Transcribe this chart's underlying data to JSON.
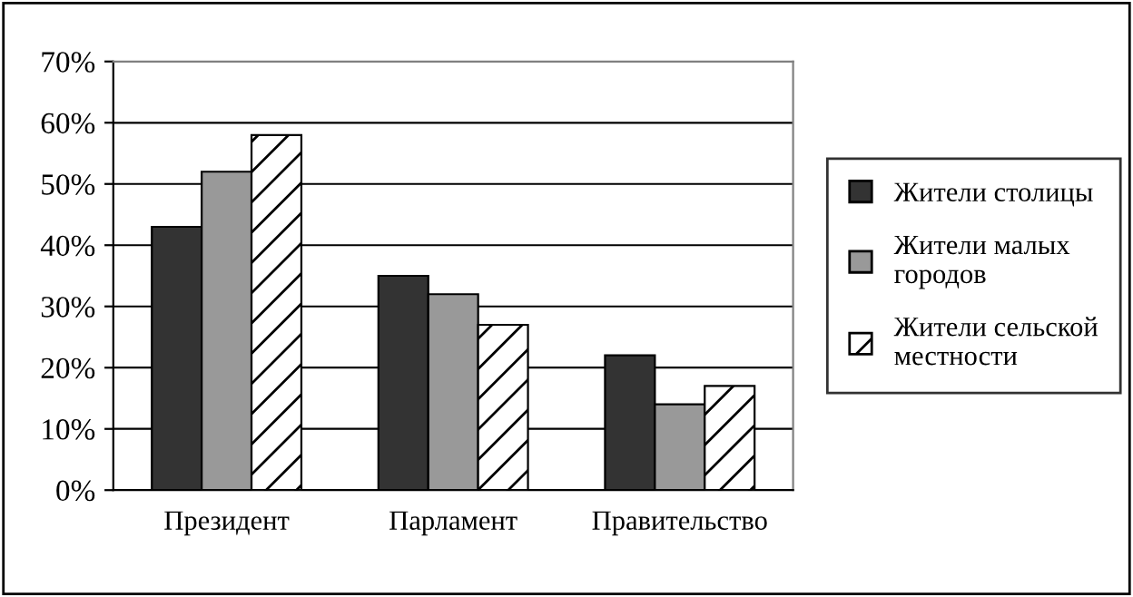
{
  "chart_data": {
    "type": "bar",
    "categories": [
      "Президент",
      "Парламент",
      "Правительство"
    ],
    "series": [
      {
        "name": "Жители столицы",
        "color": "#333333",
        "values": [
          43,
          35,
          22
        ]
      },
      {
        "name": "Жители малых городов",
        "color": "#999999",
        "values": [
          52,
          32,
          14
        ]
      },
      {
        "name": "Жители сельской местности",
        "color": "#000000",
        "values": [
          58,
          27,
          17
        ]
      }
    ],
    "ylim": [
      0,
      70
    ],
    "yticks": [
      {
        "value": 0,
        "label": "0%"
      },
      {
        "value": 10,
        "label": "10%"
      },
      {
        "value": 20,
        "label": "20%"
      },
      {
        "value": 30,
        "label": "30%"
      },
      {
        "value": 40,
        "label": "40%"
      },
      {
        "value": 50,
        "label": "50%"
      },
      {
        "value": 60,
        "label": "60%"
      },
      {
        "value": 70,
        "label": "70%"
      }
    ],
    "grid": "y",
    "legend": "right"
  }
}
